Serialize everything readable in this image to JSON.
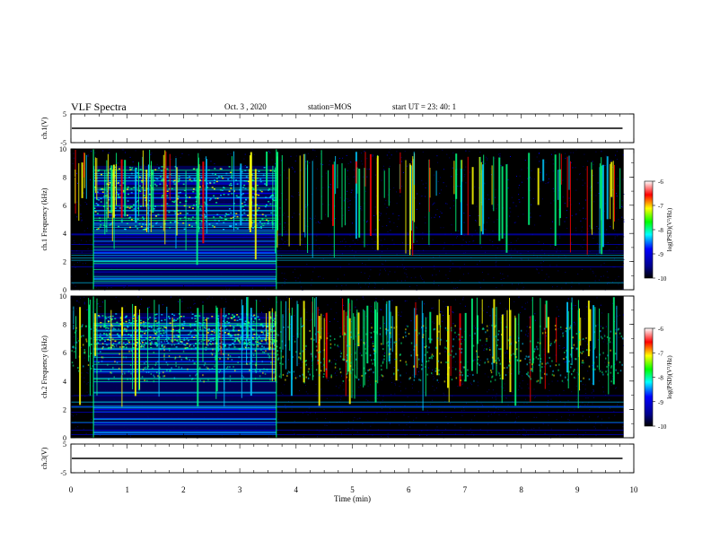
{
  "header": {
    "title": "VLF Spectra",
    "date": "Oct. 3 , 2020",
    "station_text": "station=MOS",
    "start_text": "start UT = 23: 40: 1"
  },
  "chart_data": {
    "type": "heatmap",
    "x_axis": {
      "label": "Time (min)",
      "range": [
        0,
        10
      ],
      "ticks": [
        "0",
        "1",
        "2",
        "3",
        "4",
        "5",
        "6",
        "7",
        "8",
        "9",
        "10"
      ]
    },
    "panels": [
      {
        "id": "ch1-voltage",
        "type": "line",
        "ylabel": "ch.1(V)",
        "ylim": [
          -5,
          5
        ],
        "yticks": [
          "5",
          "-5"
        ],
        "trace_level": 0,
        "trace_end_min": 9.8
      },
      {
        "id": "ch1-spectrogram",
        "type": "heatmap",
        "ylabel": "ch.1 Frequency (kHz)",
        "ylim": [
          0,
          10
        ],
        "yticks": [
          "0",
          "2",
          "4",
          "6",
          "8",
          "10"
        ],
        "data_end_min": 9.82,
        "dense_segment_min": [
          0.4,
          3.65
        ],
        "seed": 11,
        "colorbar": {
          "label": "log(PSD)(V²/Hz)",
          "range": [
            -10,
            -6
          ],
          "ticks": [
            "-6",
            "-7",
            "-8",
            "-9",
            "-10"
          ]
        }
      },
      {
        "id": "ch2-spectrogram",
        "type": "heatmap",
        "ylabel": "ch.2 Frequency (kHz)",
        "ylim": [
          0,
          10
        ],
        "yticks": [
          "0",
          "2",
          "4",
          "6",
          "8",
          "10"
        ],
        "data_end_min": 9.82,
        "dense_segment_min": [
          0.4,
          3.65
        ],
        "seed": 29,
        "colorbar": {
          "label": "log(PSD)(V²/Hz)",
          "range": [
            -10,
            -6
          ],
          "ticks": [
            "-6",
            "-7",
            "-8",
            "-9",
            "-10"
          ]
        }
      },
      {
        "id": "ch3-voltage",
        "type": "line",
        "ylabel": "ch.3(V)",
        "ylim": [
          -5,
          5
        ],
        "yticks": [
          "5",
          "-5"
        ],
        "trace_level": 0,
        "trace_end_min": 9.8
      }
    ],
    "colormap": [
      "#000000",
      "#000080",
      "#0000ff",
      "#00c8ff",
      "#00ff80",
      "#ffff00",
      "#ff0000",
      "#ffffff"
    ]
  }
}
